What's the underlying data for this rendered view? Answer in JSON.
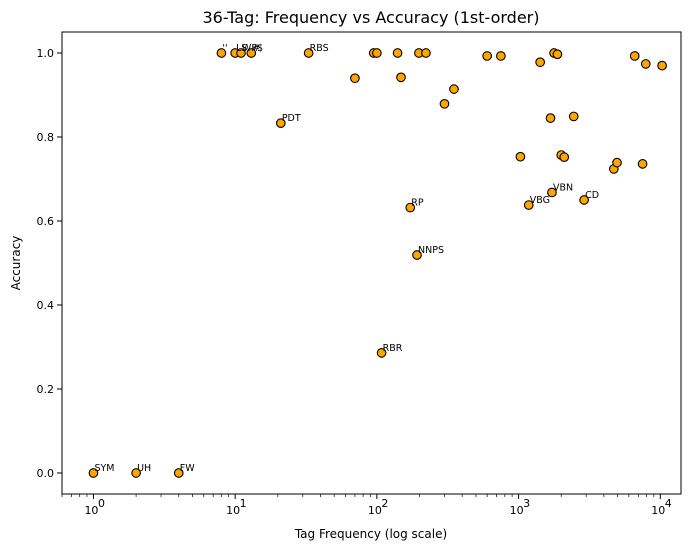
{
  "chart_data": {
    "type": "scatter",
    "title": "36-Tag: Frequency vs Accuracy (1st-order)",
    "xlabel": "Tag Frequency (log scale)",
    "ylabel": "Accuracy",
    "x_scale": "log",
    "xlim": [
      0.6,
      14000
    ],
    "ylim": [
      -0.05,
      1.05
    ],
    "x_ticks": [
      1,
      10,
      100,
      1000,
      10000
    ],
    "x_tick_labels": [
      "10",
      "10",
      "10",
      "10",
      "10"
    ],
    "x_tick_exponents": [
      "0",
      "1",
      "2",
      "3",
      "4"
    ],
    "y_ticks": [
      0.0,
      0.2,
      0.4,
      0.6,
      0.8,
      1.0
    ],
    "y_tick_labels": [
      "0.0",
      "0.2",
      "0.4",
      "0.6",
      "0.8",
      "1.0"
    ],
    "grid": false,
    "marker_color": "#FFA500",
    "marker_edge_color": "#000000",
    "points": [
      {
        "x": 1,
        "y": 0.0,
        "label": "SYM"
      },
      {
        "x": 2,
        "y": 0.0,
        "label": "UH"
      },
      {
        "x": 4,
        "y": 0.0,
        "label": "FW"
      },
      {
        "x": 8,
        "y": 1.0,
        "label": "''"
      },
      {
        "x": 10,
        "y": 1.0,
        "label": "LS"
      },
      {
        "x": 11,
        "y": 1.0,
        "label": "WP$"
      },
      {
        "x": 13,
        "y": 1.0,
        "label": "#"
      },
      {
        "x": 21,
        "y": 0.833,
        "label": "PDT"
      },
      {
        "x": 33,
        "y": 1.0,
        "label": "RBS"
      },
      {
        "x": 70,
        "y": 0.94,
        "label": ""
      },
      {
        "x": 95,
        "y": 1.0,
        "label": ""
      },
      {
        "x": 100,
        "y": 1.0,
        "label": ""
      },
      {
        "x": 108,
        "y": 0.286,
        "label": "RBR"
      },
      {
        "x": 140,
        "y": 1.0,
        "label": ""
      },
      {
        "x": 148,
        "y": 0.942,
        "label": ""
      },
      {
        "x": 172,
        "y": 0.632,
        "label": "RP"
      },
      {
        "x": 192,
        "y": 0.519,
        "label": "NNPS"
      },
      {
        "x": 198,
        "y": 1.0,
        "label": ""
      },
      {
        "x": 222,
        "y": 1.0,
        "label": ""
      },
      {
        "x": 300,
        "y": 0.879,
        "label": ""
      },
      {
        "x": 350,
        "y": 0.914,
        "label": ""
      },
      {
        "x": 600,
        "y": 0.993,
        "label": ""
      },
      {
        "x": 750,
        "y": 0.993,
        "label": ""
      },
      {
        "x": 1030,
        "y": 0.753,
        "label": ""
      },
      {
        "x": 1180,
        "y": 0.638,
        "label": "VBG"
      },
      {
        "x": 1420,
        "y": 0.978,
        "label": ""
      },
      {
        "x": 1680,
        "y": 0.845,
        "label": ""
      },
      {
        "x": 1720,
        "y": 0.668,
        "label": "VBN"
      },
      {
        "x": 1780,
        "y": 1.0,
        "label": ""
      },
      {
        "x": 1880,
        "y": 0.997,
        "label": ""
      },
      {
        "x": 2000,
        "y": 0.757,
        "label": ""
      },
      {
        "x": 2100,
        "y": 0.752,
        "label": ""
      },
      {
        "x": 2450,
        "y": 0.849,
        "label": ""
      },
      {
        "x": 2900,
        "y": 0.65,
        "label": "CD"
      },
      {
        "x": 4700,
        "y": 0.724,
        "label": ""
      },
      {
        "x": 4950,
        "y": 0.739,
        "label": ""
      },
      {
        "x": 6600,
        "y": 0.993,
        "label": ""
      },
      {
        "x": 7500,
        "y": 0.736,
        "label": ""
      },
      {
        "x": 7900,
        "y": 0.974,
        "label": ""
      },
      {
        "x": 10300,
        "y": 0.97,
        "label": ""
      }
    ]
  }
}
